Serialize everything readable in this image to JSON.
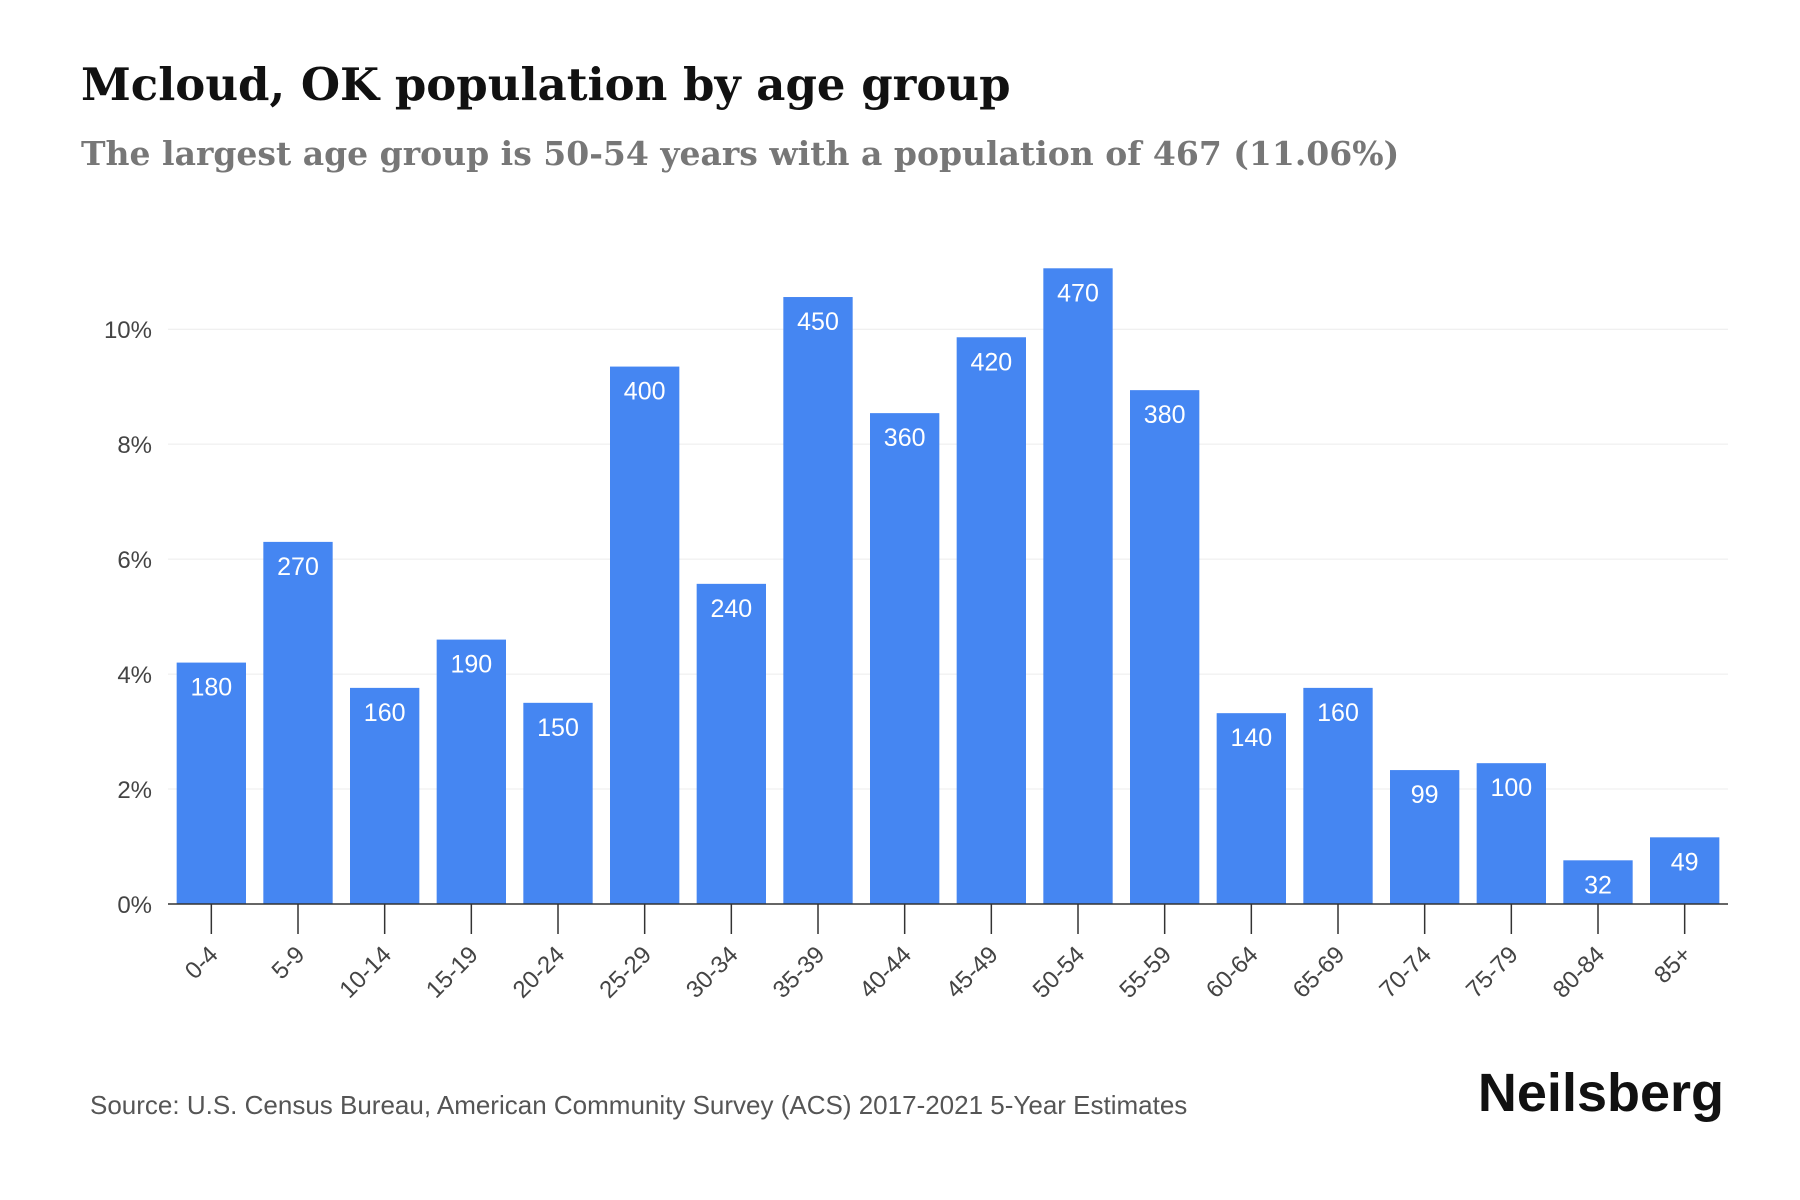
{
  "title": "Mcloud, OK population by age group",
  "subtitle": "The largest age group is 50-54 years with a population of 467 (11.06%)",
  "source": "Source: U.S. Census Bureau, American Community Survey (ACS) 2017-2021 5-Year Estimates",
  "brand": "Neilsberg",
  "colors": {
    "bar": "#4586F2",
    "bar_label": "#ffffff",
    "axis": "#333333",
    "grid": "#ececec",
    "tick_text": "#444444"
  },
  "chart_data": {
    "type": "bar",
    "categories": [
      "0-4",
      "5-9",
      "10-14",
      "15-19",
      "20-24",
      "25-29",
      "30-34",
      "35-39",
      "40-44",
      "45-49",
      "50-54",
      "55-59",
      "60-64",
      "65-69",
      "70-74",
      "75-79",
      "80-84",
      "85+"
    ],
    "values": [
      4.2,
      6.3,
      3.76,
      4.6,
      3.5,
      9.35,
      5.57,
      10.56,
      8.54,
      9.86,
      11.06,
      8.94,
      3.32,
      3.76,
      2.33,
      2.45,
      0.76,
      1.16
    ],
    "data_labels": [
      "180",
      "270",
      "160",
      "190",
      "150",
      "400",
      "240",
      "450",
      "360",
      "420",
      "470",
      "380",
      "140",
      "160",
      "99",
      "100",
      "32",
      "49"
    ],
    "yticks": [
      "0%",
      "2%",
      "4%",
      "6%",
      "8%",
      "10%"
    ],
    "ytick_values": [
      0,
      2,
      4,
      6,
      8,
      10
    ],
    "ylim": [
      0,
      11.5
    ],
    "ylabel": "",
    "xlabel": "",
    "grid": true
  }
}
